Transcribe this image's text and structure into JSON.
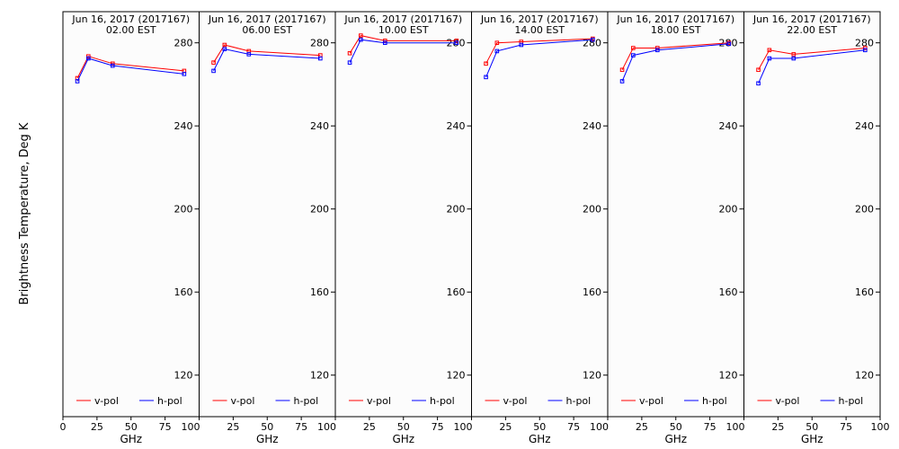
{
  "chart_data": {
    "type": "line",
    "ylabel": "Brightness Temperature, Deg K",
    "ylim": [
      100,
      295
    ],
    "xlim": [
      0,
      100
    ],
    "y_ticks": [
      120,
      160,
      200,
      240,
      280
    ],
    "x_ticks": [
      0,
      25,
      50,
      75,
      100
    ],
    "x_tick_labels": [
      "0",
      "25",
      "50",
      "75",
      "100"
    ],
    "colors": {
      "v-pol": "#ff0000",
      "h-pol": "#0000ff"
    },
    "legend_position": "bottom",
    "panels": [
      {
        "title_line1": "Jun 16, 2017 (2017167)",
        "title_line2": "02.00 EST",
        "xlabel": "GHz",
        "series": [
          {
            "name": "v-pol",
            "x": [
              10.6,
              18.7,
              36.5,
              89
            ],
            "y": [
              263,
              273.5,
              270,
              266.5
            ]
          },
          {
            "name": "h-pol",
            "x": [
              10.6,
              18.7,
              36.5,
              89
            ],
            "y": [
              261.5,
              272.5,
              269,
              265
            ]
          }
        ]
      },
      {
        "title_line1": "Jun 16, 2017 (2017167)",
        "title_line2": "06.00 EST",
        "xlabel": "GHz",
        "series": [
          {
            "name": "v-pol",
            "x": [
              10.6,
              18.7,
              36.5,
              89
            ],
            "y": [
              270.5,
              279,
              276,
              274
            ]
          },
          {
            "name": "h-pol",
            "x": [
              10.6,
              18.7,
              36.5,
              89
            ],
            "y": [
              266.5,
              277,
              274.5,
              272.5
            ]
          }
        ]
      },
      {
        "title_line1": "Jun 16, 2017 (2017167)",
        "title_line2": "10.00 EST",
        "xlabel": "GHz",
        "series": [
          {
            "name": "v-pol",
            "x": [
              10.6,
              18.7,
              36.5,
              89
            ],
            "y": [
              275,
              283.5,
              281,
              281
            ]
          },
          {
            "name": "h-pol",
            "x": [
              10.6,
              18.7,
              36.5,
              89
            ],
            "y": [
              270.5,
              281.5,
              280,
              280
            ]
          }
        ]
      },
      {
        "title_line1": "Jun 16, 2017 (2017167)",
        "title_line2": "14.00 EST",
        "xlabel": "GHz",
        "series": [
          {
            "name": "v-pol",
            "x": [
              10.6,
              18.7,
              36.5,
              89
            ],
            "y": [
              270,
              280,
              280.5,
              282
            ]
          },
          {
            "name": "h-pol",
            "x": [
              10.6,
              18.7,
              36.5,
              89
            ],
            "y": [
              263.5,
              276,
              279,
              281.5
            ]
          }
        ]
      },
      {
        "title_line1": "Jun 16, 2017 (2017167)",
        "title_line2": "18.00 EST",
        "xlabel": "GHz",
        "series": [
          {
            "name": "v-pol",
            "x": [
              10.6,
              18.7,
              36.5,
              89
            ],
            "y": [
              267,
              277.5,
              277.5,
              280
            ]
          },
          {
            "name": "h-pol",
            "x": [
              10.6,
              18.7,
              36.5,
              89
            ],
            "y": [
              261.5,
              274,
              276.5,
              279.5
            ]
          }
        ]
      },
      {
        "title_line1": "Jun 16, 2017 (2017167)",
        "title_line2": "22.00 EST",
        "xlabel": "GHz",
        "series": [
          {
            "name": "v-pol",
            "x": [
              10.6,
              18.7,
              36.5,
              89
            ],
            "y": [
              267,
              276.5,
              274.5,
              277.5
            ]
          },
          {
            "name": "h-pol",
            "x": [
              10.6,
              18.7,
              36.5,
              89
            ],
            "y": [
              260.5,
              272.5,
              272.5,
              276.5
            ]
          }
        ]
      }
    ]
  }
}
